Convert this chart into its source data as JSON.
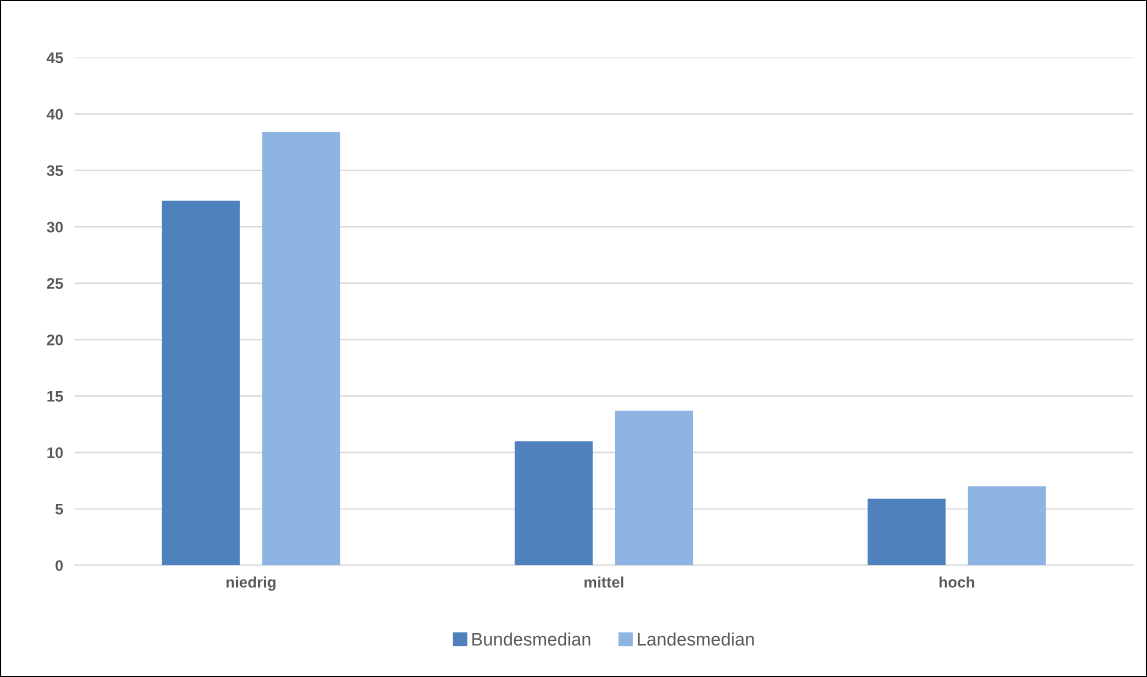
{
  "chart_data": {
    "type": "bar",
    "categories": [
      "niedrig",
      "mittel",
      "hoch"
    ],
    "series": [
      {
        "name": "Bundesmedian",
        "color": "#4f81bd",
        "values": [
          32.3,
          11.0,
          5.9
        ]
      },
      {
        "name": "Landesmedian",
        "color": "#8eb4e3",
        "values": [
          38.4,
          13.7,
          7.0
        ]
      }
    ],
    "ylim": [
      0,
      45
    ],
    "yticks": [
      0,
      5,
      10,
      15,
      20,
      25,
      30,
      35,
      40,
      45
    ],
    "grid": "y",
    "legend": "bottom"
  }
}
